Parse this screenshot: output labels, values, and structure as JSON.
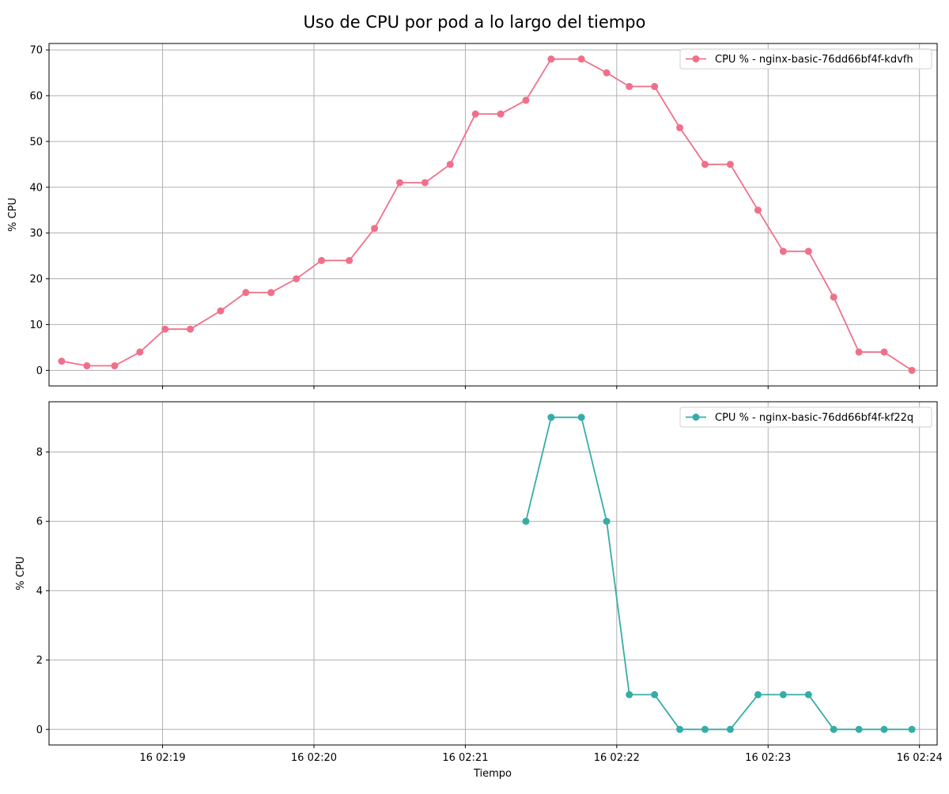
{
  "figure": {
    "title": "Uso de CPU por pod a lo largo del tiempo",
    "xlabel": "Tiempo"
  },
  "chart_data": [
    {
      "type": "line",
      "ylabel": "% CPU",
      "ylim": [
        -3.4,
        71.4
      ],
      "yticks": [
        0,
        10,
        20,
        30,
        40,
        50,
        60,
        70
      ],
      "xlim": [
        "16 02:18:15",
        "16 02:24:07"
      ],
      "xticks": [
        {
          "t": "16 02:19:00",
          "label": "16 02:19"
        },
        {
          "t": "16 02:20:00",
          "label": "16 02:20"
        },
        {
          "t": "16 02:21:00",
          "label": "16 02:21"
        },
        {
          "t": "16 02:22:00",
          "label": "16 02:22"
        },
        {
          "t": "16 02:23:00",
          "label": "16 02:23"
        },
        {
          "t": "16 02:24:00",
          "label": "16 02:24"
        }
      ],
      "show_xtick_labels": false,
      "grid": true,
      "legend": "top-right",
      "series": [
        {
          "name": "CPU % - nginx-basic-76dd66bf4f-kdvfh",
          "color": "#f0708a",
          "marker": "circle",
          "points": [
            [
              "16 02:18:20",
              2
            ],
            [
              "16 02:18:30",
              1
            ],
            [
              "16 02:18:41",
              1
            ],
            [
              "16 02:18:51",
              4
            ],
            [
              "16 02:19:01",
              9
            ],
            [
              "16 02:19:11",
              9
            ],
            [
              "16 02:19:23",
              13
            ],
            [
              "16 02:19:33",
              17
            ],
            [
              "16 02:19:43",
              17
            ],
            [
              "16 02:19:53",
              20
            ],
            [
              "16 02:20:03",
              24
            ],
            [
              "16 02:20:14",
              24
            ],
            [
              "16 02:20:24",
              31
            ],
            [
              "16 02:20:34",
              41
            ],
            [
              "16 02:20:44",
              41
            ],
            [
              "16 02:20:54",
              45
            ],
            [
              "16 02:21:04",
              56
            ],
            [
              "16 02:21:14",
              56
            ],
            [
              "16 02:21:24",
              59
            ],
            [
              "16 02:21:34",
              68
            ],
            [
              "16 02:21:46",
              68
            ],
            [
              "16 02:21:56",
              65
            ],
            [
              "16 02:22:05",
              62
            ],
            [
              "16 02:22:15",
              62
            ],
            [
              "16 02:22:25",
              53
            ],
            [
              "16 02:22:35",
              45
            ],
            [
              "16 02:22:45",
              45
            ],
            [
              "16 02:22:56",
              35
            ],
            [
              "16 02:23:06",
              26
            ],
            [
              "16 02:23:16",
              26
            ],
            [
              "16 02:23:26",
              16
            ],
            [
              "16 02:23:36",
              4
            ],
            [
              "16 02:23:46",
              4
            ],
            [
              "16 02:23:57",
              0
            ]
          ]
        }
      ]
    },
    {
      "type": "line",
      "ylabel": "% CPU",
      "ylim": [
        -0.45,
        9.45
      ],
      "yticks": [
        0,
        2,
        4,
        6,
        8
      ],
      "xlim": [
        "16 02:18:15",
        "16 02:24:07"
      ],
      "xticks": [
        {
          "t": "16 02:19:00",
          "label": "16 02:19"
        },
        {
          "t": "16 02:20:00",
          "label": "16 02:20"
        },
        {
          "t": "16 02:21:00",
          "label": "16 02:21"
        },
        {
          "t": "16 02:22:00",
          "label": "16 02:22"
        },
        {
          "t": "16 02:23:00",
          "label": "16 02:23"
        },
        {
          "t": "16 02:24:00",
          "label": "16 02:24"
        }
      ],
      "show_xtick_labels": true,
      "grid": true,
      "legend": "top-right",
      "series": [
        {
          "name": "CPU % - nginx-basic-76dd66bf4f-kf22q",
          "color": "#35ada6",
          "marker": "circle",
          "points": [
            [
              "16 02:21:24",
              6
            ],
            [
              "16 02:21:34",
              9
            ],
            [
              "16 02:21:46",
              9
            ],
            [
              "16 02:21:56",
              6
            ],
            [
              "16 02:22:05",
              1
            ],
            [
              "16 02:22:15",
              1
            ],
            [
              "16 02:22:25",
              0
            ],
            [
              "16 02:22:35",
              0
            ],
            [
              "16 02:22:45",
              0
            ],
            [
              "16 02:22:56",
              1
            ],
            [
              "16 02:23:06",
              1
            ],
            [
              "16 02:23:16",
              1
            ],
            [
              "16 02:23:26",
              0
            ],
            [
              "16 02:23:36",
              0
            ],
            [
              "16 02:23:46",
              0
            ],
            [
              "16 02:23:57",
              0
            ]
          ]
        }
      ]
    }
  ]
}
